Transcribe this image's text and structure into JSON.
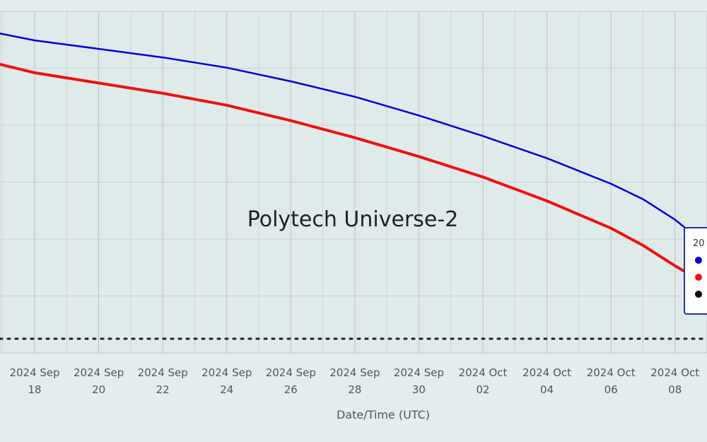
{
  "chart_data": {
    "type": "line",
    "title": "Polytech Universe-2",
    "xlabel": "Date/Time (UTC)",
    "x_ticks": [
      {
        "date": "2024-09-18",
        "line1": "2024 Sep",
        "line2": "18"
      },
      {
        "date": "2024-09-20",
        "line1": "2024 Sep",
        "line2": "20"
      },
      {
        "date": "2024-09-22",
        "line1": "2024 Sep",
        "line2": "22"
      },
      {
        "date": "2024-09-24",
        "line1": "2024 Sep",
        "line2": "24"
      },
      {
        "date": "2024-09-26",
        "line1": "2024 Sep",
        "line2": "26"
      },
      {
        "date": "2024-09-28",
        "line1": "2024 Sep",
        "line2": "28"
      },
      {
        "date": "2024-09-30",
        "line1": "2024 Sep",
        "line2": "30"
      },
      {
        "date": "2024-10-02",
        "line1": "2024 Oct",
        "line2": "02"
      },
      {
        "date": "2024-10-04",
        "line1": "2024 Oct",
        "line2": "04"
      },
      {
        "date": "2024-10-06",
        "line1": "2024 Oct",
        "line2": "06"
      },
      {
        "date": "2024-10-08",
        "line1": "2024 Oct",
        "line2": "08"
      }
    ],
    "xlim": [
      "2024-09-16T22:00",
      "2024-10-09T00:00"
    ],
    "ylim": [
      0,
      100
    ],
    "grid": true,
    "legend_title": "20",
    "series": [
      {
        "color": "#0000dd",
        "points": [
          [
            "2024-09-16T22:00",
            93.5
          ],
          [
            "2024-09-18T00:00",
            91.5
          ],
          [
            "2024-09-20T00:00",
            89.0
          ],
          [
            "2024-09-22T00:00",
            86.5
          ],
          [
            "2024-09-24T00:00",
            83.5
          ],
          [
            "2024-09-26T00:00",
            79.5
          ],
          [
            "2024-09-28T00:00",
            75.0
          ],
          [
            "2024-09-30T00:00",
            69.5
          ],
          [
            "2024-10-02T00:00",
            63.5
          ],
          [
            "2024-10-04T00:00",
            57.0
          ],
          [
            "2024-10-06T00:00",
            49.5
          ],
          [
            "2024-10-07T00:00",
            45.0
          ],
          [
            "2024-10-08T00:00",
            39.0
          ],
          [
            "2024-10-09T00:00",
            31.5
          ]
        ]
      },
      {
        "color": "#ee1111",
        "points": [
          [
            "2024-09-16T22:00",
            84.5
          ],
          [
            "2024-09-18T00:00",
            82.0
          ],
          [
            "2024-09-20T00:00",
            79.0
          ],
          [
            "2024-09-22T00:00",
            76.0
          ],
          [
            "2024-09-24T00:00",
            72.5
          ],
          [
            "2024-09-26T00:00",
            68.0
          ],
          [
            "2024-09-28T00:00",
            63.0
          ],
          [
            "2024-09-30T00:00",
            57.5
          ],
          [
            "2024-10-02T00:00",
            51.5
          ],
          [
            "2024-10-04T00:00",
            44.5
          ],
          [
            "2024-10-06T00:00",
            36.5
          ],
          [
            "2024-10-07T00:00",
            31.5
          ],
          [
            "2024-10-08T00:00",
            25.5
          ],
          [
            "2024-10-09T00:00",
            20.0
          ]
        ]
      }
    ],
    "reference_line": {
      "color": "#222222",
      "style": "dotted",
      "y": 0
    },
    "legend_markers": [
      "#0000dd",
      "#ee1111",
      "#000000"
    ]
  }
}
